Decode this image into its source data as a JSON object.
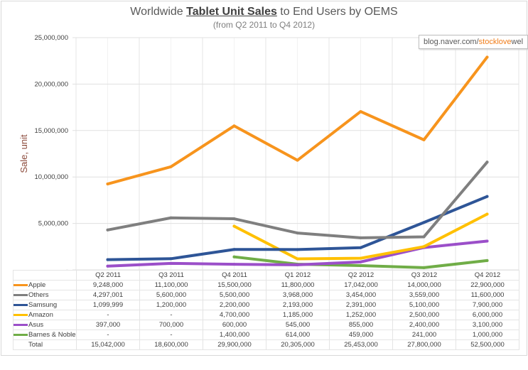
{
  "chart_data": {
    "type": "line",
    "title_parts": [
      "Worldwide ",
      "Tablet Unit Sales",
      " to End Users by OEMS"
    ],
    "subtitle": "(from Q2 2011 to Q4 2012)",
    "ylabel": "Sale, unit",
    "xlabel": "",
    "ylim": [
      0,
      25000000
    ],
    "yticks": [
      0,
      5000000,
      10000000,
      15000000,
      20000000,
      25000000
    ],
    "grid": true,
    "legend": "data-table",
    "categories": [
      "Q2 2011",
      "Q3 2011",
      "Q4 2011",
      "Q1 2012",
      "Q2 2012",
      "Q3 2012",
      "Q4 2012"
    ],
    "series": [
      {
        "name": "Apple",
        "color": "#f7941d",
        "values": [
          9248000,
          11100000,
          15500000,
          11800000,
          17042000,
          14000000,
          22900000
        ]
      },
      {
        "name": "Others",
        "color": "#7f7f7f",
        "values": [
          4297001,
          5600000,
          5500000,
          3968000,
          3454000,
          3559000,
          11600000
        ]
      },
      {
        "name": "Samsung",
        "color": "#2e5597",
        "values": [
          1099999,
          1200000,
          2200000,
          2193000,
          2391000,
          5100000,
          7900000
        ]
      },
      {
        "name": "Amazon",
        "color": "#ffc000",
        "values": [
          null,
          null,
          4700000,
          1185000,
          1252000,
          2500000,
          6000000
        ]
      },
      {
        "name": "Asus",
        "color": "#9b4fc9",
        "values": [
          397000,
          700000,
          600000,
          545000,
          855000,
          2400000,
          3100000
        ]
      },
      {
        "name": "Barnes & Noble",
        "color": "#70ad47",
        "values": [
          null,
          null,
          1400000,
          614000,
          459000,
          241000,
          1000000
        ]
      }
    ],
    "total": {
      "name": "Total",
      "values": [
        15042000,
        18600000,
        29900000,
        20305000,
        25453000,
        27800000,
        52500000
      ]
    },
    "missing_label": "-"
  },
  "watermark": {
    "prefix": "blog.naver.com/",
    "highlight": "stocklove",
    "suffix": "wel"
  }
}
